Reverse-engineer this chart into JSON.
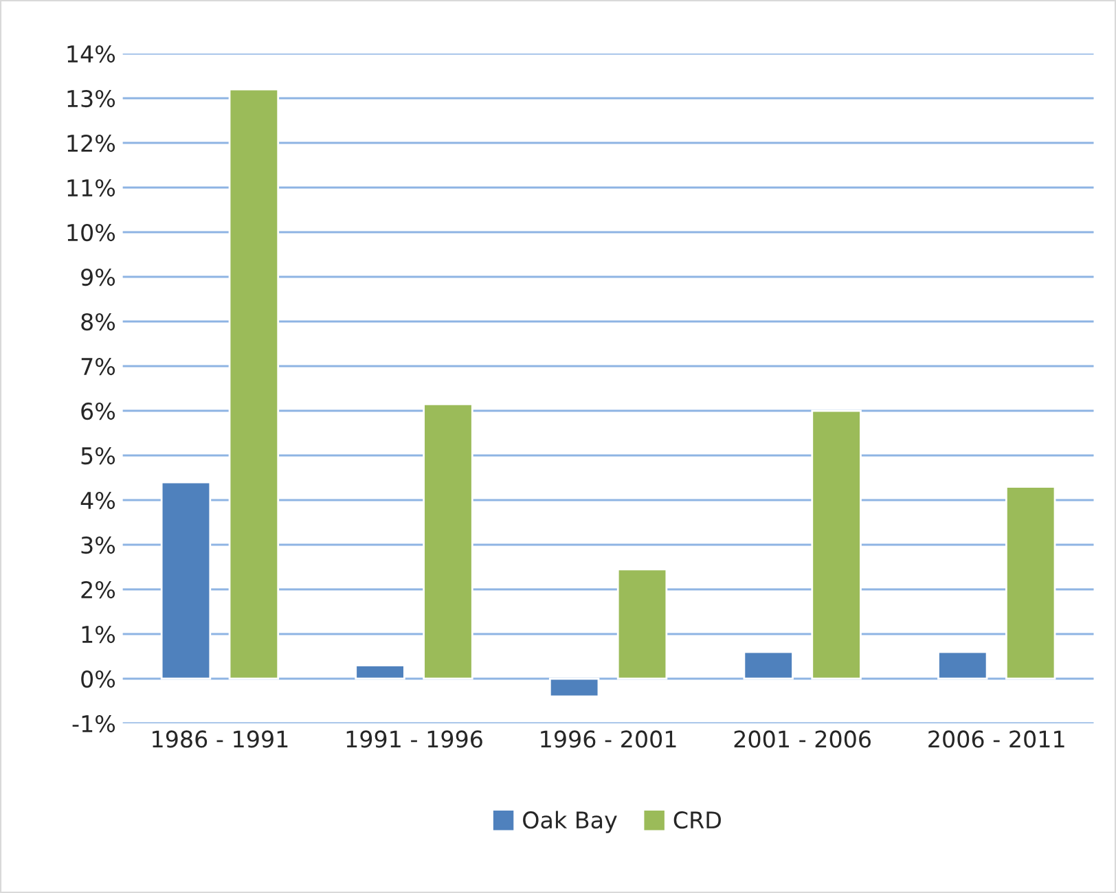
{
  "chart_data": {
    "type": "bar",
    "categories": [
      "1986 - 1991",
      "1991 - 1996",
      "1996 - 2001",
      "2001 - 2006",
      "2006 - 2011"
    ],
    "series": [
      {
        "name": "Oak Bay",
        "color": "#4f81bd",
        "values": [
          4.4,
          0.3,
          -0.4,
          0.6,
          0.6
        ]
      },
      {
        "name": "CRD",
        "color": "#9bbb59",
        "values": [
          13.2,
          6.15,
          2.45,
          6.0,
          4.3
        ]
      }
    ],
    "ylim": [
      -1,
      14
    ],
    "yticks": [
      {
        "value": -1,
        "label": "-1%"
      },
      {
        "value": 0,
        "label": "0%"
      },
      {
        "value": 1,
        "label": "1%"
      },
      {
        "value": 2,
        "label": "2%"
      },
      {
        "value": 3,
        "label": "3%"
      },
      {
        "value": 4,
        "label": "4%"
      },
      {
        "value": 5,
        "label": "5%"
      },
      {
        "value": 6,
        "label": "6%"
      },
      {
        "value": 7,
        "label": "7%"
      },
      {
        "value": 8,
        "label": "8%"
      },
      {
        "value": 9,
        "label": "9%"
      },
      {
        "value": 10,
        "label": "10%"
      },
      {
        "value": 11,
        "label": "11%"
      },
      {
        "value": 12,
        "label": "12%"
      },
      {
        "value": 13,
        "label": "13%"
      },
      {
        "value": 14,
        "label": "14%"
      }
    ],
    "grid": "y",
    "legend": "bottom"
  }
}
